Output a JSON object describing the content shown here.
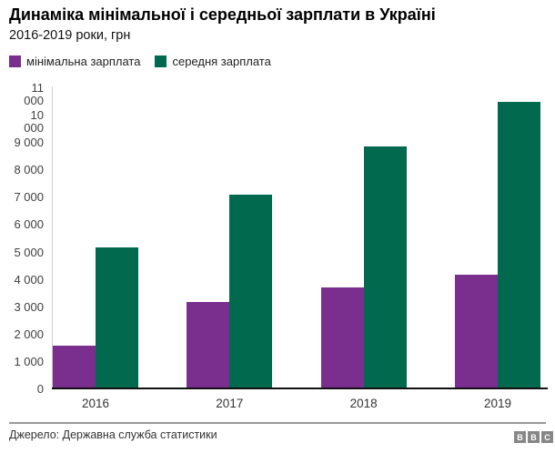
{
  "header": {
    "title": "Динаміка мінімальної і середньої зарплати в Україні",
    "subtitle": "2016-2019 роки, грн"
  },
  "legend": {
    "position": "top",
    "items": [
      {
        "label": "мінімальна зарплата",
        "color": "#7a2e8d"
      },
      {
        "label": "середня зарплата",
        "color": "#00694e"
      }
    ]
  },
  "chart_data": {
    "type": "bar",
    "title": "Динаміка мінімальної і середньої зарплати в Україні",
    "subtitle": "2016-2019 роки, грн",
    "categories": [
      "2016",
      "2017",
      "2018",
      "2019"
    ],
    "series": [
      {
        "name": "мінімальна зарплата",
        "color": "#7a2e8d",
        "values": [
          1600,
          3200,
          3723,
          4173
        ]
      },
      {
        "name": "середня зарплата",
        "color": "#00694e",
        "values": [
          5183,
          7104,
          8865,
          10497
        ]
      }
    ],
    "xlabel": "",
    "ylabel": "",
    "ylim": [
      0,
      11000
    ],
    "ytick_values": [
      0,
      1000,
      2000,
      3000,
      4000,
      5000,
      6000,
      7000,
      8000,
      9000,
      10000,
      11000
    ],
    "ytick_labels": [
      "0",
      "1 000",
      "2 000",
      "3 000",
      "4 000",
      "5 000",
      "6 000",
      "7 000",
      "8 000",
      "9 000",
      "10 000",
      "11 000"
    ],
    "grid": false,
    "legend_position": "top"
  },
  "footer": {
    "source": "Джерело: Державна служба статистики",
    "logo_letters": [
      "B",
      "B",
      "C"
    ]
  },
  "colors": {
    "minimum_salary": "#7a2e8d",
    "average_salary": "#00694e",
    "axis_line": "#cccccc",
    "baseline": "#111111",
    "text": "#333333"
  }
}
